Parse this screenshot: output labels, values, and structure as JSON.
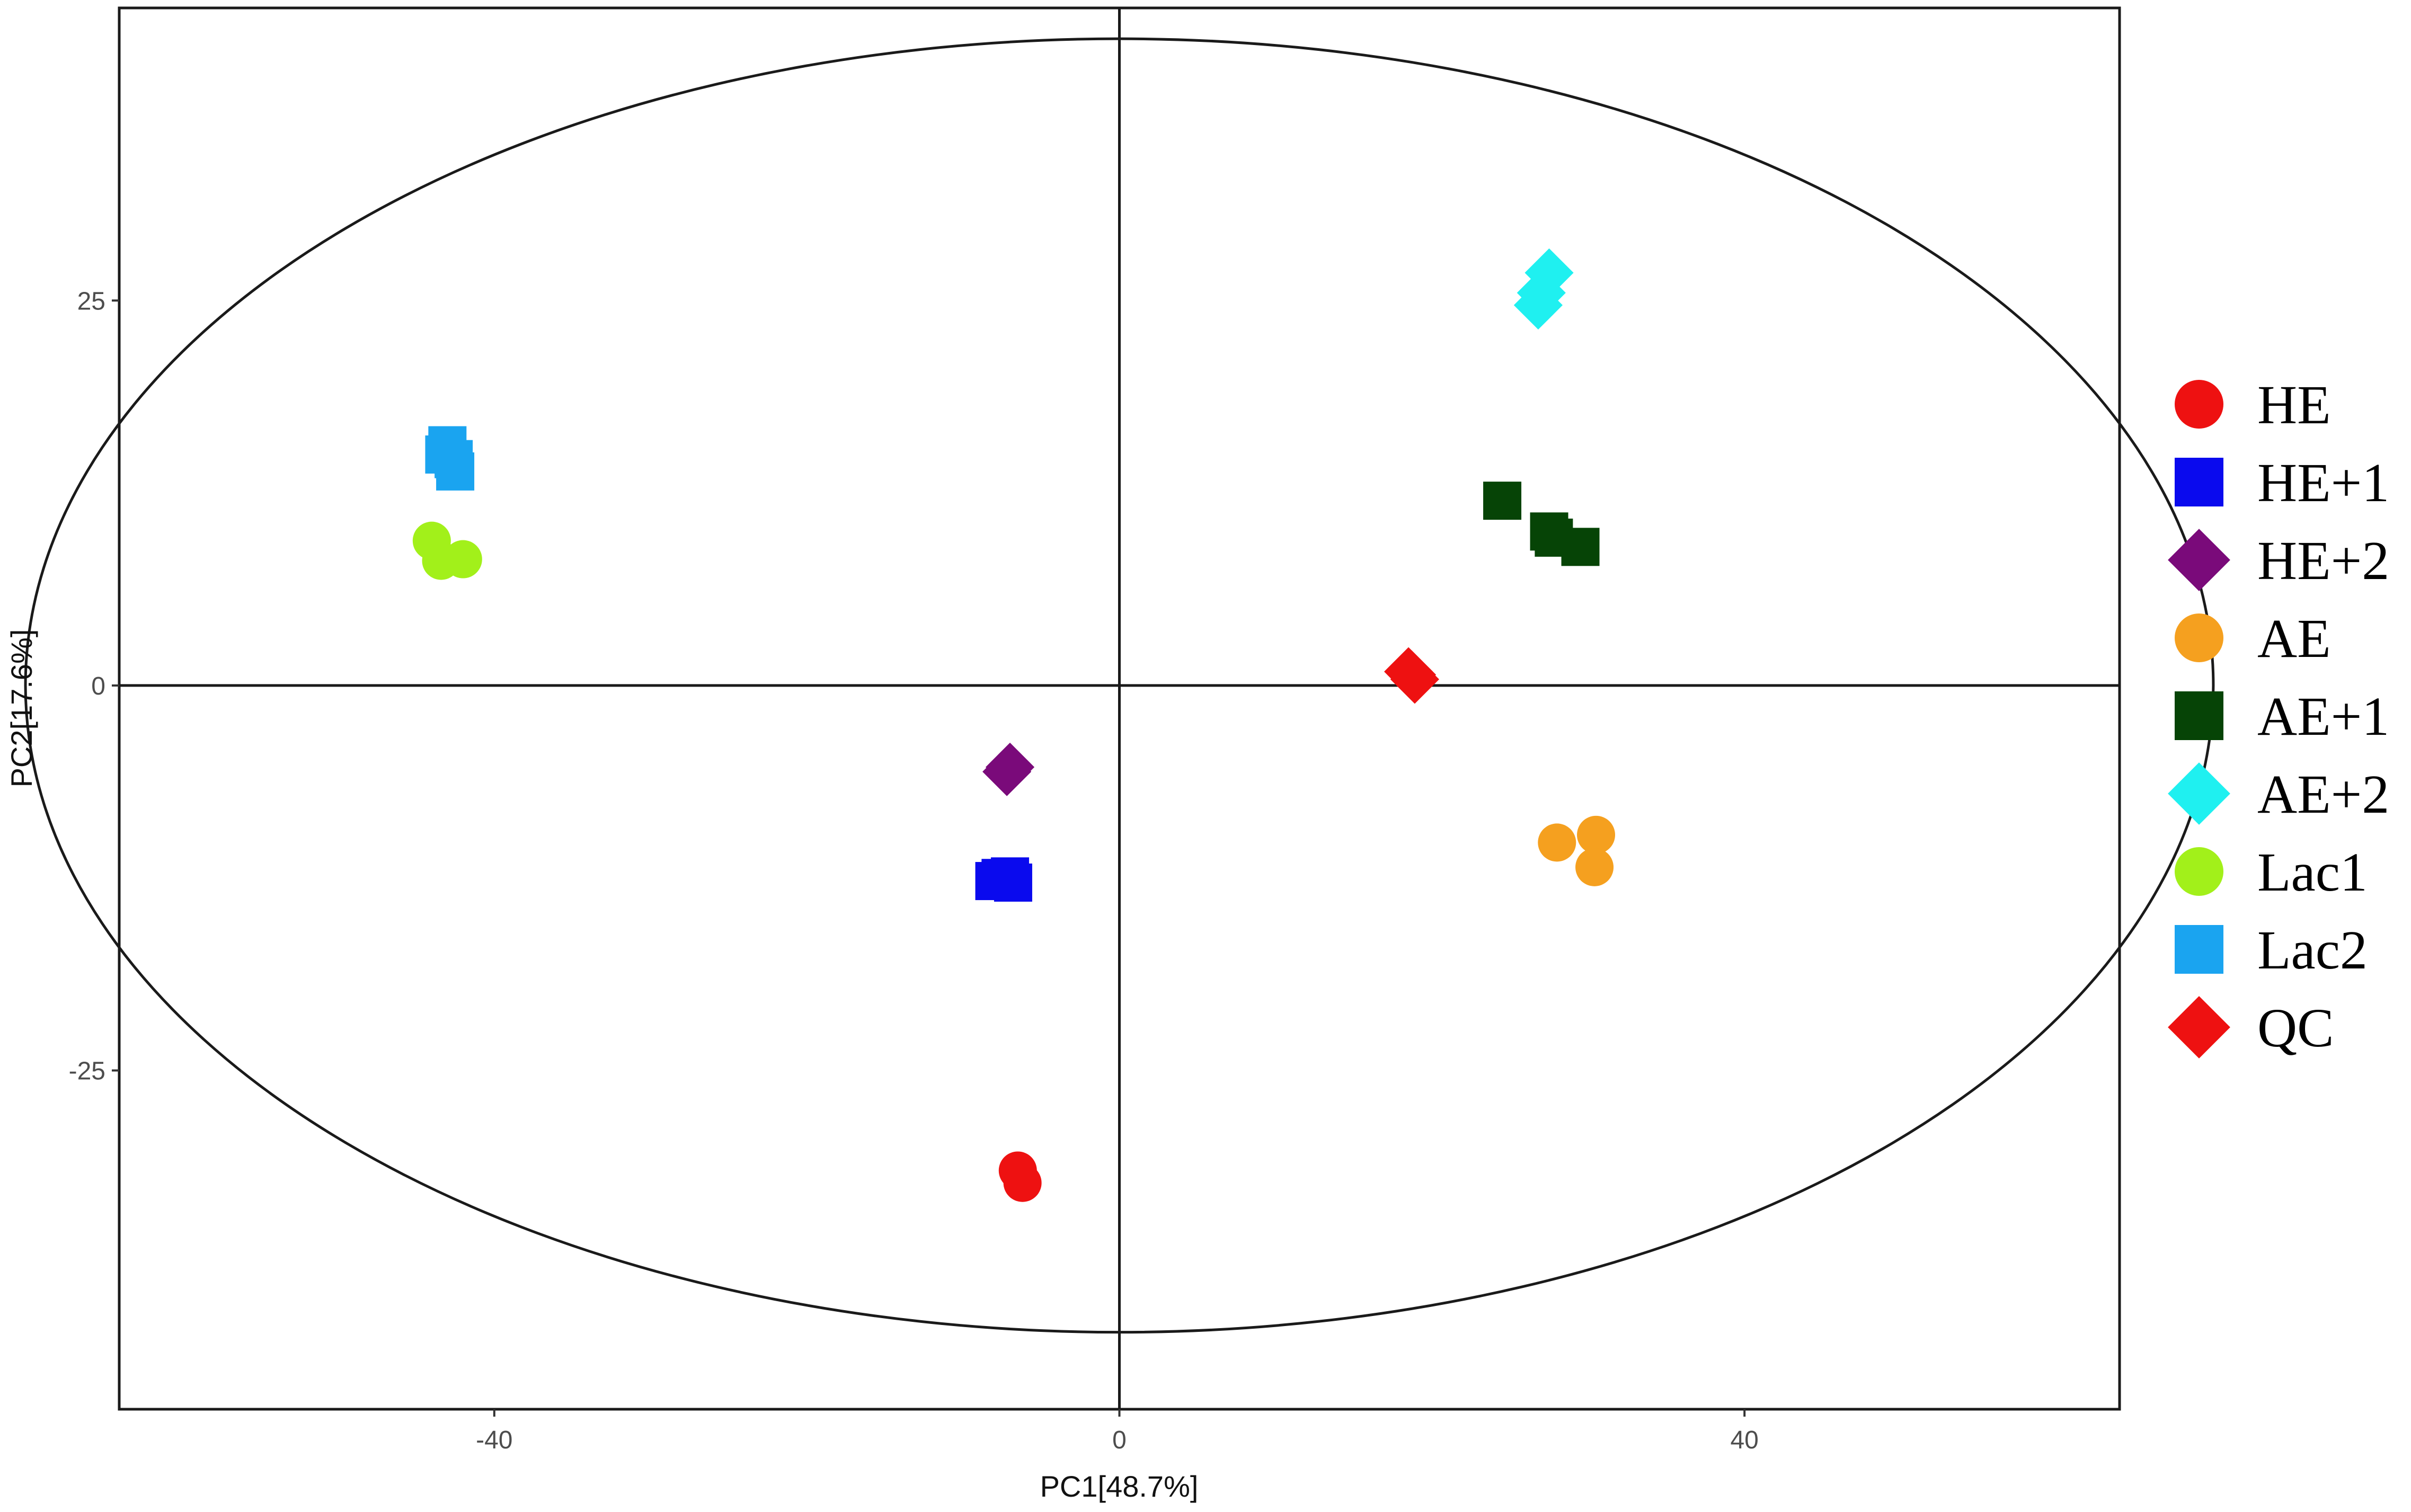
{
  "chart_data": {
    "type": "scatter",
    "xlabel": "PC1[48.7%]",
    "ylabel": "PC2[17.6%]",
    "xlim": [
      -64,
      64
    ],
    "ylim": [
      -47,
      44
    ],
    "xticks": [
      -40,
      0,
      40
    ],
    "yticks": [
      -25,
      0,
      25
    ],
    "grid": false,
    "reference_lines": {
      "x": 0,
      "y": 0
    },
    "confidence_ellipse": {
      "center": [
        0,
        0
      ],
      "semi_axis_x": 70,
      "semi_axis_y": 42
    },
    "legend_position": "right",
    "series": [
      {
        "name": "HE",
        "marker": "circle",
        "color": "#ee1111",
        "points": [
          [
            -6.5,
            -31.5
          ],
          [
            -6.2,
            -32.3
          ]
        ]
      },
      {
        "name": "HE+1",
        "marker": "square",
        "color": "#0a0aee",
        "points": [
          [
            -8.0,
            -12.7
          ],
          [
            -7.0,
            -12.4
          ],
          [
            -6.8,
            -12.8
          ],
          [
            -7.6,
            -12.5
          ]
        ]
      },
      {
        "name": "HE+2",
        "marker": "diamond",
        "color": "#7a0a7a",
        "points": [
          [
            -7.0,
            -5.3
          ],
          [
            -7.2,
            -5.6
          ]
        ]
      },
      {
        "name": "AE",
        "marker": "circle",
        "color": "#f5a01f",
        "points": [
          [
            28.0,
            -10.2
          ],
          [
            30.5,
            -9.7
          ],
          [
            30.4,
            -11.8
          ]
        ]
      },
      {
        "name": "AE+1",
        "marker": "square",
        "color": "#064406",
        "points": [
          [
            24.5,
            12.0
          ],
          [
            27.5,
            10.0
          ],
          [
            29.5,
            9.0
          ],
          [
            27.8,
            9.6
          ]
        ]
      },
      {
        "name": "AE+2",
        "marker": "diamond",
        "color": "#1ff0f0",
        "points": [
          [
            27.0,
            25.5
          ],
          [
            27.5,
            26.8
          ],
          [
            26.8,
            24.7
          ]
        ]
      },
      {
        "name": "Lac1",
        "marker": "circle",
        "color": "#a2f01a",
        "points": [
          [
            -44.0,
            9.4
          ],
          [
            -43.4,
            8.1
          ],
          [
            -42.0,
            8.2
          ]
        ]
      },
      {
        "name": "Lac2",
        "marker": "square",
        "color": "#1aa4f0",
        "points": [
          [
            -43.0,
            15.6
          ],
          [
            -42.6,
            14.7
          ],
          [
            -42.5,
            13.9
          ],
          [
            -43.2,
            15.0
          ]
        ]
      },
      {
        "name": "QC",
        "marker": "diamond",
        "color": "#ee1111",
        "points": [
          [
            18.5,
            0.9
          ],
          [
            18.9,
            0.4
          ],
          [
            18.7,
            0.7
          ]
        ]
      }
    ]
  }
}
